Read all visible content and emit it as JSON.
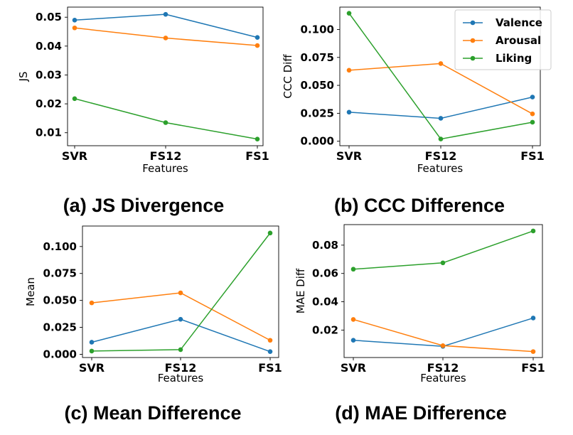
{
  "colors": {
    "Valence": "#1f77b4",
    "Arousal": "#ff7f0e",
    "Liking": "#2ca02c"
  },
  "legend": {
    "entries": [
      "Valence",
      "Arousal",
      "Liking"
    ],
    "placement": "upper-right of panel b"
  },
  "chart_data": [
    {
      "type": "line",
      "caption": "(a) JS Divergence",
      "xlabel": "Features",
      "ylabel": "JS",
      "categories": [
        "SVR",
        "FS12",
        "FS1"
      ],
      "ylim": [
        0.0055,
        0.0535
      ],
      "yticks": [
        0.01,
        0.02,
        0.03,
        0.04,
        0.05
      ],
      "ytick_labels": [
        "0.01",
        "0.02",
        "0.03",
        "0.04",
        "0.05"
      ],
      "series": [
        {
          "name": "Valence",
          "values": [
            0.049,
            0.051,
            0.043
          ]
        },
        {
          "name": "Arousal",
          "values": [
            0.0463,
            0.0428,
            0.0402
          ]
        },
        {
          "name": "Liking",
          "values": [
            0.0218,
            0.0135,
            0.0078
          ]
        }
      ]
    },
    {
      "type": "line",
      "caption": "(b) CCC Difference",
      "xlabel": "Features",
      "ylabel": "CCC Diff",
      "categories": [
        "SVR",
        "FS12",
        "FS1"
      ],
      "ylim": [
        -0.004,
        0.12
      ],
      "yticks": [
        0.0,
        0.025,
        0.05,
        0.075,
        0.1
      ],
      "ytick_labels": [
        "0.000",
        "0.025",
        "0.050",
        "0.075",
        "0.100"
      ],
      "series": [
        {
          "name": "Valence",
          "values": [
            0.026,
            0.0205,
            0.0395
          ]
        },
        {
          "name": "Arousal",
          "values": [
            0.0635,
            0.0695,
            0.0245
          ]
        },
        {
          "name": "Liking",
          "values": [
            0.1145,
            0.002,
            0.017
          ]
        }
      ]
    },
    {
      "type": "line",
      "caption": "(c) Mean Difference",
      "xlabel": "Features",
      "ylabel": "Mean",
      "categories": [
        "SVR",
        "FS12",
        "FS1"
      ],
      "ylim": [
        -0.003,
        0.119
      ],
      "yticks": [
        0.0,
        0.025,
        0.05,
        0.075,
        0.1
      ],
      "ytick_labels": [
        "0.000",
        "0.025",
        "0.050",
        "0.075",
        "0.100"
      ],
      "series": [
        {
          "name": "Valence",
          "values": [
            0.0112,
            0.0325,
            0.0025
          ]
        },
        {
          "name": "Arousal",
          "values": [
            0.0477,
            0.057,
            0.013
          ]
        },
        {
          "name": "Liking",
          "values": [
            0.003,
            0.0043,
            0.1125
          ]
        }
      ]
    },
    {
      "type": "line",
      "caption": "(d) MAE Difference",
      "xlabel": "Features",
      "ylabel": "MAE Diff",
      "categories": [
        "SVR",
        "FS12",
        "FS1"
      ],
      "ylim": [
        0.0006,
        0.0945
      ],
      "yticks": [
        0.02,
        0.04,
        0.06,
        0.08
      ],
      "ytick_labels": [
        "0.02",
        "0.04",
        "0.06",
        "0.08"
      ],
      "series": [
        {
          "name": "Valence",
          "values": [
            0.0128,
            0.0085,
            0.0285
          ]
        },
        {
          "name": "Arousal",
          "values": [
            0.0275,
            0.009,
            0.0048
          ]
        },
        {
          "name": "Liking",
          "values": [
            0.063,
            0.0675,
            0.09
          ]
        }
      ]
    }
  ]
}
